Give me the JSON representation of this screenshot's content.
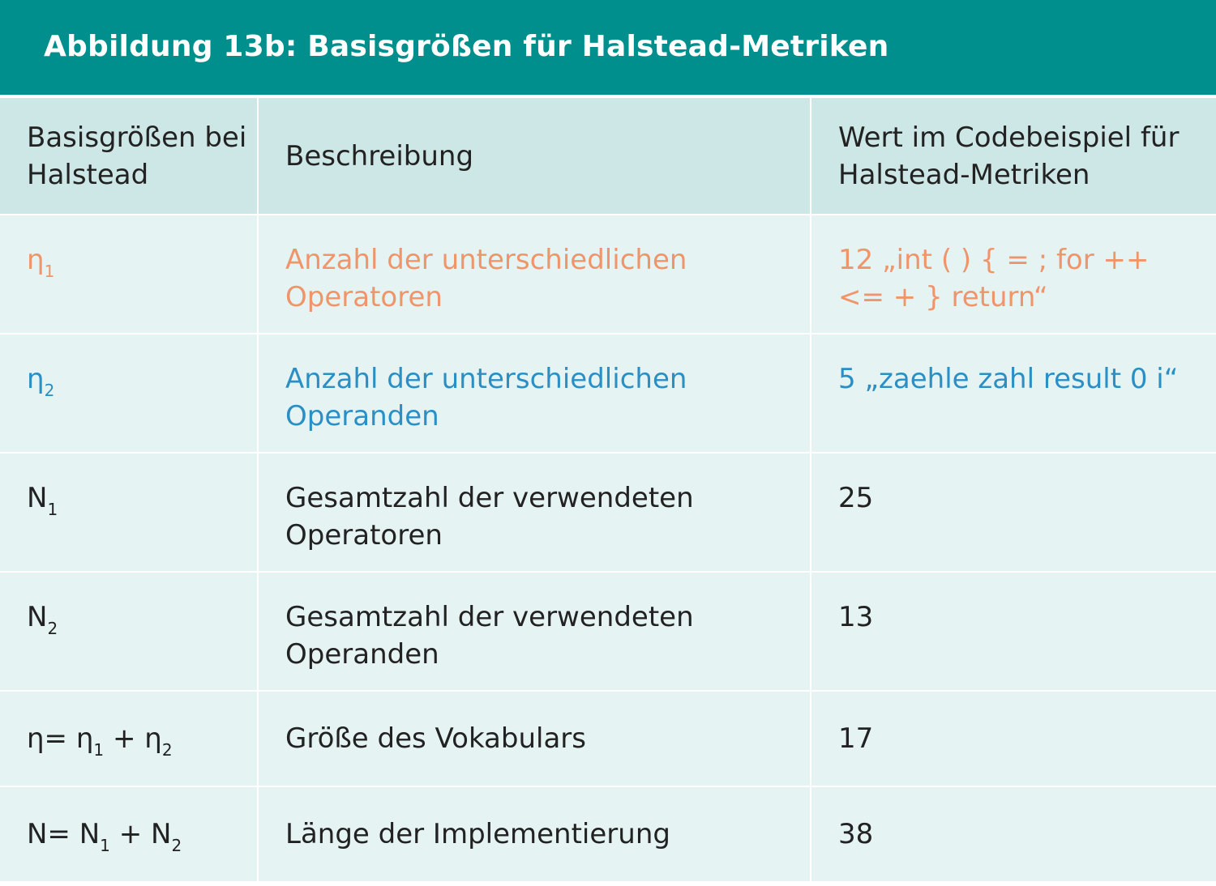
{
  "figure": {
    "title": "Abbildung 13b: Basisgrößen für Halstead-Metriken",
    "colors": {
      "header_bg": "#008f8d",
      "table_header_bg": "#cde7e7",
      "row_bg": "#e6f3f3",
      "operators_highlight": "#f0956a",
      "operands_highlight": "#2a8fc4"
    }
  },
  "table": {
    "headers": [
      "Basisgrößen bei Halstead",
      "Beschreibung",
      "Wert im Codebeispiel für Halstead-Metriken"
    ],
    "rows": [
      {
        "symbol": {
          "base": "η",
          "sub": "1"
        },
        "description": "Anzahl der unterschiedlichen Operatoren",
        "value": "12 „int ( ) { = ;  for ++  <= + } return“"
      },
      {
        "symbol": {
          "base": "η",
          "sub": "2"
        },
        "description": "Anzahl der unterschiedlichen Operanden",
        "value": "5 „zaehle zahl result 0 i“"
      },
      {
        "symbol": {
          "base": "N",
          "sub": "1"
        },
        "description": "Gesamtzahl der verwendeten Operatoren",
        "value": "25"
      },
      {
        "symbol": {
          "base": "N",
          "sub": "2"
        },
        "description": "Gesamtzahl der verwendeten Operanden",
        "value": "13"
      },
      {
        "symbol": {
          "lhs": "η=",
          "a": "η",
          "a_sub": "1",
          "op": "+",
          "b": "η",
          "b_sub": "2"
        },
        "description": "Größe des Vokabulars",
        "value": "17"
      },
      {
        "symbol": {
          "lhs": "N=",
          "a": "N",
          "a_sub": "1",
          "op": "+",
          "b": "N",
          "b_sub": "2"
        },
        "description": "Länge der Implementierung",
        "value": "38"
      }
    ]
  }
}
